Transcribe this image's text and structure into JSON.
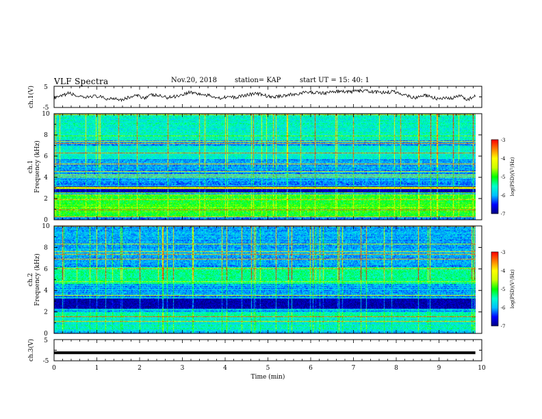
{
  "header": {
    "title": "VLF Spectra",
    "date": "Nov.20, 2018",
    "station": "station= KAP",
    "start": "start  UT =   15: 40: 1"
  },
  "chart_data": [
    {
      "type": "line",
      "panel": "ch1-waveform",
      "ylabel": "ch.1(V)",
      "ylim": [
        -5,
        5
      ],
      "yticklabels": [
        "5",
        "-5"
      ],
      "xlim": [
        0,
        9.85
      ],
      "series": [
        {
          "values": [
            -0.8,
            0.3,
            1.8,
            0.5,
            -0.6,
            0.4,
            0.1,
            -1.0,
            -0.5,
            -1.3,
            -0.2,
            0.6,
            -0.4,
            0.9,
            0.5,
            -0.3,
            0.2,
            1.0,
            2.3,
            1.6,
            0.8,
            0.4,
            -0.6,
            0.2,
            -0.4,
            0.5,
            1.2,
            1.5,
            0.7,
            -0.2,
            0.4,
            0.9,
            1.2,
            1.9,
            2.2,
            2.0,
            1.8,
            2.4,
            2.6,
            2.3,
            2.6,
            2.9,
            2.5,
            2.2,
            2.0,
            2.5,
            1.6,
            0.6,
            -0.5,
            0.8,
            0.2,
            -1.0,
            -0.8,
            -0.6,
            0.5,
            -1.2,
            0.3
          ]
        }
      ]
    },
    {
      "type": "heatmap",
      "panel": "ch1-spectrogram",
      "ylabel": "Frequency (kHz)",
      "channel_label": "ch.1",
      "ylim": [
        0,
        10
      ],
      "yticklabels": [
        "0",
        "2",
        "4",
        "6",
        "8",
        "10"
      ],
      "xlim": [
        0,
        9.85
      ],
      "colorbar": {
        "label": "log(PSD)(V²/Hz)",
        "min": -7,
        "max": -3,
        "ticklabels": [
          "-3",
          "-4",
          "-5",
          "-6",
          "-7"
        ]
      }
    },
    {
      "type": "heatmap",
      "panel": "ch2-spectrogram",
      "ylabel": "Frequency (kHz)",
      "channel_label": "ch.2",
      "ylim": [
        0,
        10
      ],
      "yticklabels": [
        "0",
        "2",
        "4",
        "6",
        "8",
        "10"
      ],
      "xlim": [
        0,
        9.85
      ],
      "colorbar": {
        "label": "log(PSD)(V²/Hz)",
        "min": -7,
        "max": -3,
        "ticklabels": [
          "-3",
          "-4",
          "-5",
          "-6",
          "-7"
        ]
      }
    },
    {
      "type": "line",
      "panel": "ch3-waveform",
      "ylabel": "ch.3(V)",
      "ylim": [
        -5,
        5
      ],
      "yticklabels": [
        "5",
        "-5"
      ],
      "xlim": [
        0,
        9.85
      ],
      "series": [
        {
          "values": [
            -1.2,
            -1.2
          ]
        }
      ]
    }
  ],
  "x_axis": {
    "label": "Time  (min)",
    "ticklabels": [
      "0",
      "1",
      "2",
      "3",
      "4",
      "5",
      "6",
      "7",
      "8",
      "9",
      "10"
    ],
    "range": [
      0,
      10
    ]
  },
  "colormap": [
    "#00007f",
    "#0000ff",
    "#00bfff",
    "#00ffcc",
    "#00ff00",
    "#ccff00",
    "#ffff00",
    "#ff8000",
    "#ff0000",
    "#ffffff"
  ]
}
